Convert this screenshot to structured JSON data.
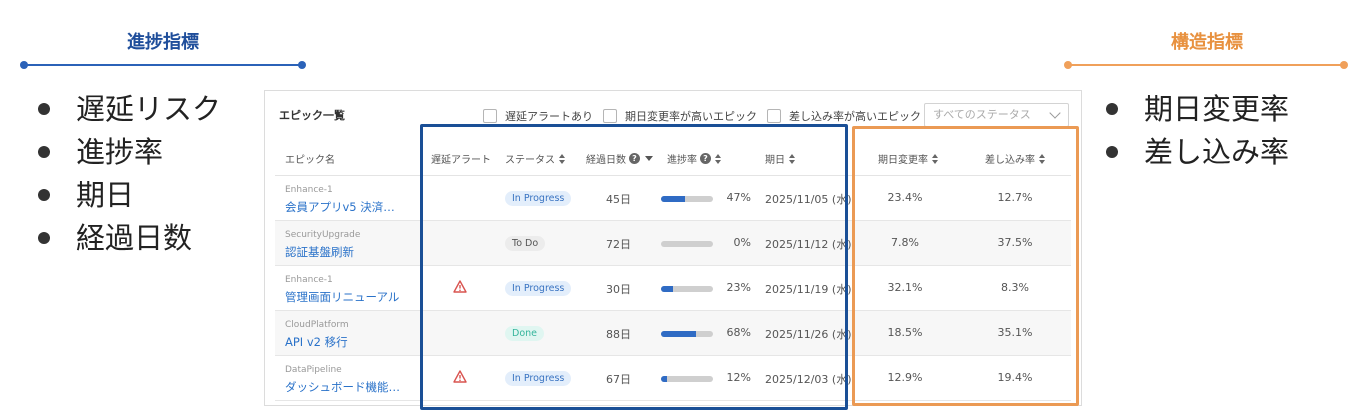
{
  "left_section": {
    "title": "進捗指標",
    "bullets": [
      "遅延リスク",
      "進捗率",
      "期日",
      "経過日数"
    ]
  },
  "right_section": {
    "title": "構造指標",
    "bullets": [
      "期日変更率",
      "差し込み率"
    ]
  },
  "panel": {
    "title": "エピック一覧",
    "filters": [
      {
        "label": "遅延アラートあり",
        "checked": false
      },
      {
        "label": "期日変更率が高いエピック",
        "checked": false
      },
      {
        "label": "差し込み率が高いエピック",
        "checked": false
      }
    ],
    "status_select": {
      "value": "すべてのステータス"
    }
  },
  "table": {
    "headers": {
      "epic_name": "エピック名",
      "delay_alert": "遅延アラート",
      "status": "ステータス",
      "elapsed_days": "経過日数",
      "progress": "進捗率",
      "due_date": "期日",
      "due_change_rate": "期日変更率",
      "insertion_rate": "差し込み率"
    },
    "rows": [
      {
        "key": "Enhance-1",
        "name": "会員アプリv5 決済…",
        "alert": false,
        "status": "In Progress",
        "status_type": "prog",
        "days": "45日",
        "progress": 47,
        "progress_label": "47%",
        "due": "2025/11/05 (水)",
        "due_change": "23.4%",
        "insertion": "12.7%"
      },
      {
        "key": "SecurityUpgrade",
        "name": "認証基盤刷新",
        "alert": false,
        "status": "To Do",
        "status_type": "todo",
        "days": "72日",
        "progress": 0,
        "progress_label": "0%",
        "due": "2025/11/12 (水)",
        "due_change": "7.8%",
        "insertion": "37.5%"
      },
      {
        "key": "Enhance-1",
        "name": "管理画面リニューアル",
        "alert": true,
        "status": "In Progress",
        "status_type": "prog",
        "days": "30日",
        "progress": 23,
        "progress_label": "23%",
        "due": "2025/11/19 (水)",
        "due_change": "32.1%",
        "insertion": "8.3%"
      },
      {
        "key": "CloudPlatform",
        "name": "API v2 移行",
        "alert": false,
        "status": "Done",
        "status_type": "done",
        "days": "88日",
        "progress": 68,
        "progress_label": "68%",
        "due": "2025/11/26 (水)",
        "due_change": "18.5%",
        "insertion": "35.1%"
      },
      {
        "key": "DataPipeline",
        "name": "ダッシュボード機能…",
        "alert": true,
        "status": "In Progress",
        "status_type": "prog",
        "days": "67日",
        "progress": 12,
        "progress_label": "12%",
        "due": "2025/12/03 (水)",
        "due_change": "12.9%",
        "insertion": "19.4%"
      }
    ]
  },
  "colors": {
    "progress_accent": "#1f4e9b",
    "structure_accent": "#eb9a54",
    "link": "#2a72c9",
    "alert": "#d9534f"
  },
  "icons": {
    "help": "question-circle-icon",
    "alert": "warning-triangle-icon",
    "sort": "sort-icon"
  }
}
